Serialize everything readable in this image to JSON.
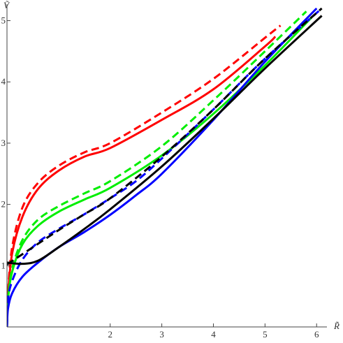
{
  "chart_data": {
    "type": "line",
    "title": "",
    "xlabel": "R̃",
    "ylabel": "Ṽ",
    "xlim": [
      0,
      6.2
    ],
    "ylim": [
      0,
      5.2
    ],
    "x_ticks": [
      2,
      3,
      4,
      5,
      6
    ],
    "y_ticks": [
      1,
      2,
      3,
      4,
      5
    ],
    "grid": false,
    "legend": "none",
    "series": [
      {
        "color": "#ff0000",
        "dash": "solid",
        "points": [
          [
            0,
            0
          ],
          [
            0.02,
            0.5
          ],
          [
            0.1,
            1.2
          ],
          [
            0.3,
            1.8
          ],
          [
            0.6,
            2.25
          ],
          [
            1,
            2.55
          ],
          [
            1.5,
            2.78
          ],
          [
            2,
            2.92
          ],
          [
            3,
            3.38
          ],
          [
            4,
            3.88
          ],
          [
            5,
            4.58
          ],
          [
            5.2,
            4.74
          ]
        ]
      },
      {
        "color": "#ff0000",
        "dash": "dashed",
        "points": [
          [
            0,
            0
          ],
          [
            0.02,
            0.55
          ],
          [
            0.1,
            1.3
          ],
          [
            0.3,
            1.95
          ],
          [
            0.6,
            2.35
          ],
          [
            1,
            2.63
          ],
          [
            1.5,
            2.85
          ],
          [
            2,
            3.0
          ],
          [
            3,
            3.5
          ],
          [
            4,
            4.05
          ],
          [
            5,
            4.72
          ],
          [
            5.3,
            4.92
          ]
        ]
      },
      {
        "color": "#00ee00",
        "dash": "solid",
        "points": [
          [
            0,
            0
          ],
          [
            0.02,
            0.45
          ],
          [
            0.1,
            0.9
          ],
          [
            0.3,
            1.35
          ],
          [
            0.6,
            1.65
          ],
          [
            1,
            1.88
          ],
          [
            1.5,
            2.08
          ],
          [
            2,
            2.27
          ],
          [
            3,
            2.8
          ],
          [
            4,
            3.48
          ],
          [
            5,
            4.27
          ],
          [
            5.9,
            5.05
          ]
        ]
      },
      {
        "color": "#00ee00",
        "dash": "dashed",
        "points": [
          [
            0,
            0
          ],
          [
            0.02,
            0.45
          ],
          [
            0.1,
            0.95
          ],
          [
            0.3,
            1.42
          ],
          [
            0.6,
            1.75
          ],
          [
            1,
            1.97
          ],
          [
            1.5,
            2.18
          ],
          [
            2,
            2.38
          ],
          [
            3,
            2.95
          ],
          [
            4,
            3.7
          ],
          [
            5,
            4.5
          ],
          [
            5.8,
            5.15
          ]
        ]
      },
      {
        "color": "#0000ff",
        "dash": "solid",
        "points": [
          [
            0,
            0
          ],
          [
            0.02,
            0.3
          ],
          [
            0.1,
            0.55
          ],
          [
            0.3,
            0.82
          ],
          [
            0.6,
            1.05
          ],
          [
            1,
            1.3
          ],
          [
            1.5,
            1.55
          ],
          [
            2,
            1.83
          ],
          [
            2.5,
            2.15
          ],
          [
            3,
            2.5
          ],
          [
            4,
            3.38
          ],
          [
            5,
            4.33
          ],
          [
            6,
            5.2
          ]
        ]
      },
      {
        "color": "#0000ff",
        "dash": "dashed",
        "points": [
          [
            0,
            0
          ],
          [
            0.02,
            0.45
          ],
          [
            0.1,
            0.75
          ],
          [
            0.3,
            1.1
          ],
          [
            0.6,
            1.38
          ],
          [
            1,
            1.6
          ],
          [
            1.5,
            1.84
          ],
          [
            2,
            2.1
          ],
          [
            2.5,
            2.38
          ],
          [
            3,
            2.75
          ],
          [
            4,
            3.55
          ],
          [
            5,
            4.38
          ],
          [
            6.1,
            5.2
          ]
        ]
      },
      {
        "color": "#000000",
        "dash": "solid",
        "points": [
          [
            0,
            1.05
          ],
          [
            0.3,
            1.03
          ],
          [
            0.6,
            1.08
          ],
          [
            1,
            1.3
          ],
          [
            1.5,
            1.6
          ],
          [
            2,
            1.92
          ],
          [
            3,
            2.62
          ],
          [
            4,
            3.4
          ],
          [
            5,
            4.22
          ],
          [
            6.1,
            5.08
          ]
        ]
      },
      {
        "color": "#000000",
        "dash": "dashed",
        "points": [
          [
            0,
            1.02
          ],
          [
            0.5,
            1.3
          ],
          [
            1,
            1.58
          ],
          [
            1.5,
            1.84
          ],
          [
            2,
            2.1
          ],
          [
            3,
            2.78
          ],
          [
            4,
            3.55
          ],
          [
            5,
            4.38
          ],
          [
            6.1,
            5.2
          ]
        ]
      }
    ]
  }
}
